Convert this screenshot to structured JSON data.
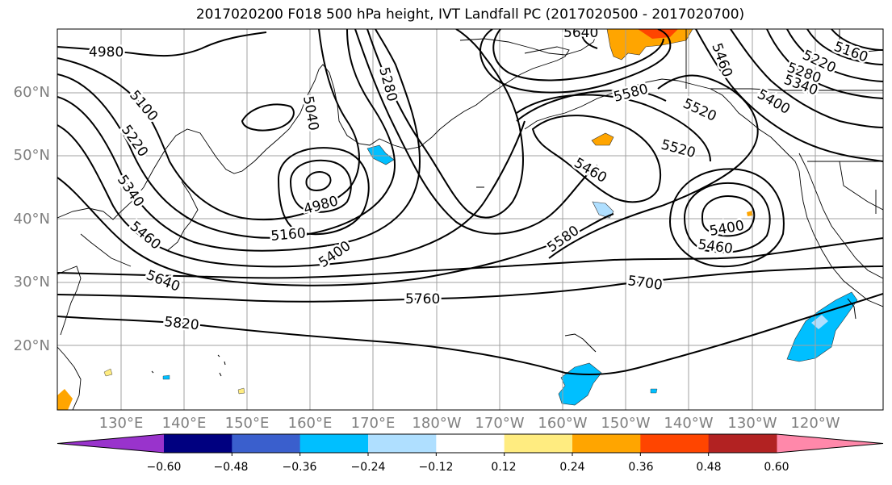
{
  "title": "2017020200 F018 500 hPa height, IVT Landfall PC (2017020500 - 2017020700)",
  "latitude_labels": [
    "60°N",
    "50°N",
    "40°N",
    "30°N",
    "20°N"
  ],
  "longitude_labels": [
    "130°E",
    "140°E",
    "150°E",
    "160°E",
    "170°E",
    "180°W",
    "170°W",
    "160°W",
    "150°W",
    "140°W",
    "130°W",
    "120°W"
  ],
  "contour_labels": [
    "4980",
    "5100",
    "5220",
    "5340",
    "5460",
    "5640",
    "5820",
    "5040",
    "5280",
    "4980",
    "5160",
    "5400",
    "5760",
    "5700",
    "5640",
    "5580",
    "5520",
    "5460",
    "5580",
    "5520",
    "5400",
    "5460",
    "5460",
    "5160",
    "5220",
    "5280",
    "5340",
    "5400"
  ],
  "colorbar": {
    "ticks": [
      "−0.60",
      "−0.48",
      "−0.36",
      "−0.24",
      "−0.12",
      "0.12",
      "0.24",
      "0.36",
      "0.48",
      "0.60"
    ],
    "colors": [
      "#9933cc",
      "#000080",
      "#3a5fcd",
      "#00bfff",
      "#afdfff",
      "#ffffff",
      "#ffec80",
      "#ffa500",
      "#ff4500",
      "#b22222",
      "#ff88aa"
    ]
  }
}
